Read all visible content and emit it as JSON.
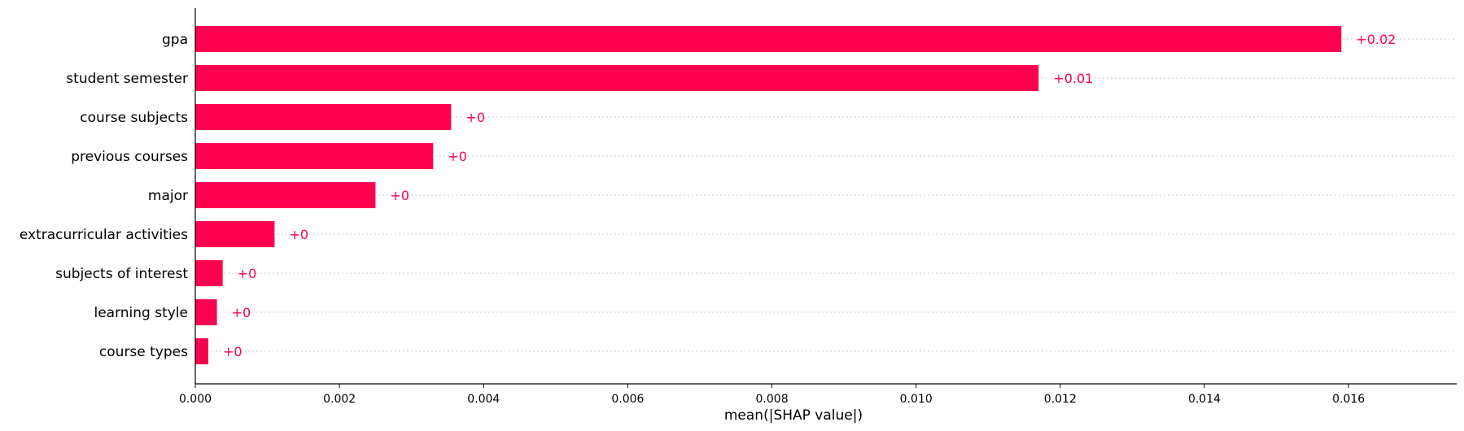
{
  "chart_data": {
    "type": "bar",
    "orientation": "horizontal",
    "categories": [
      "gpa",
      "student semester",
      "course subjects",
      "previous courses",
      "major",
      "extracurricular activities",
      "subjects of interest",
      "learning style",
      "course types"
    ],
    "values": [
      0.0159,
      0.0117,
      0.00355,
      0.0033,
      0.0025,
      0.0011,
      0.00038,
      0.0003,
      0.00018
    ],
    "value_labels": [
      "+0.02",
      "+0.01",
      "+0",
      "+0",
      "+0",
      "+0",
      "+0",
      "+0",
      "+0"
    ],
    "xlabel": "mean(|SHAP value|)",
    "ylabel": "",
    "xlim": [
      0,
      0.0175
    ],
    "xticks": [
      "0.000",
      "0.002",
      "0.004",
      "0.006",
      "0.008",
      "0.010",
      "0.012",
      "0.014",
      "0.016"
    ],
    "xtick_values": [
      0,
      0.002,
      0.004,
      0.006,
      0.008,
      0.01,
      0.012,
      0.014,
      0.016
    ],
    "grid": "horizontal dotted",
    "colors": {
      "bar": "#ff0051",
      "label": "#ff0051",
      "grid": "#cccccc",
      "axis": "#000000"
    }
  }
}
